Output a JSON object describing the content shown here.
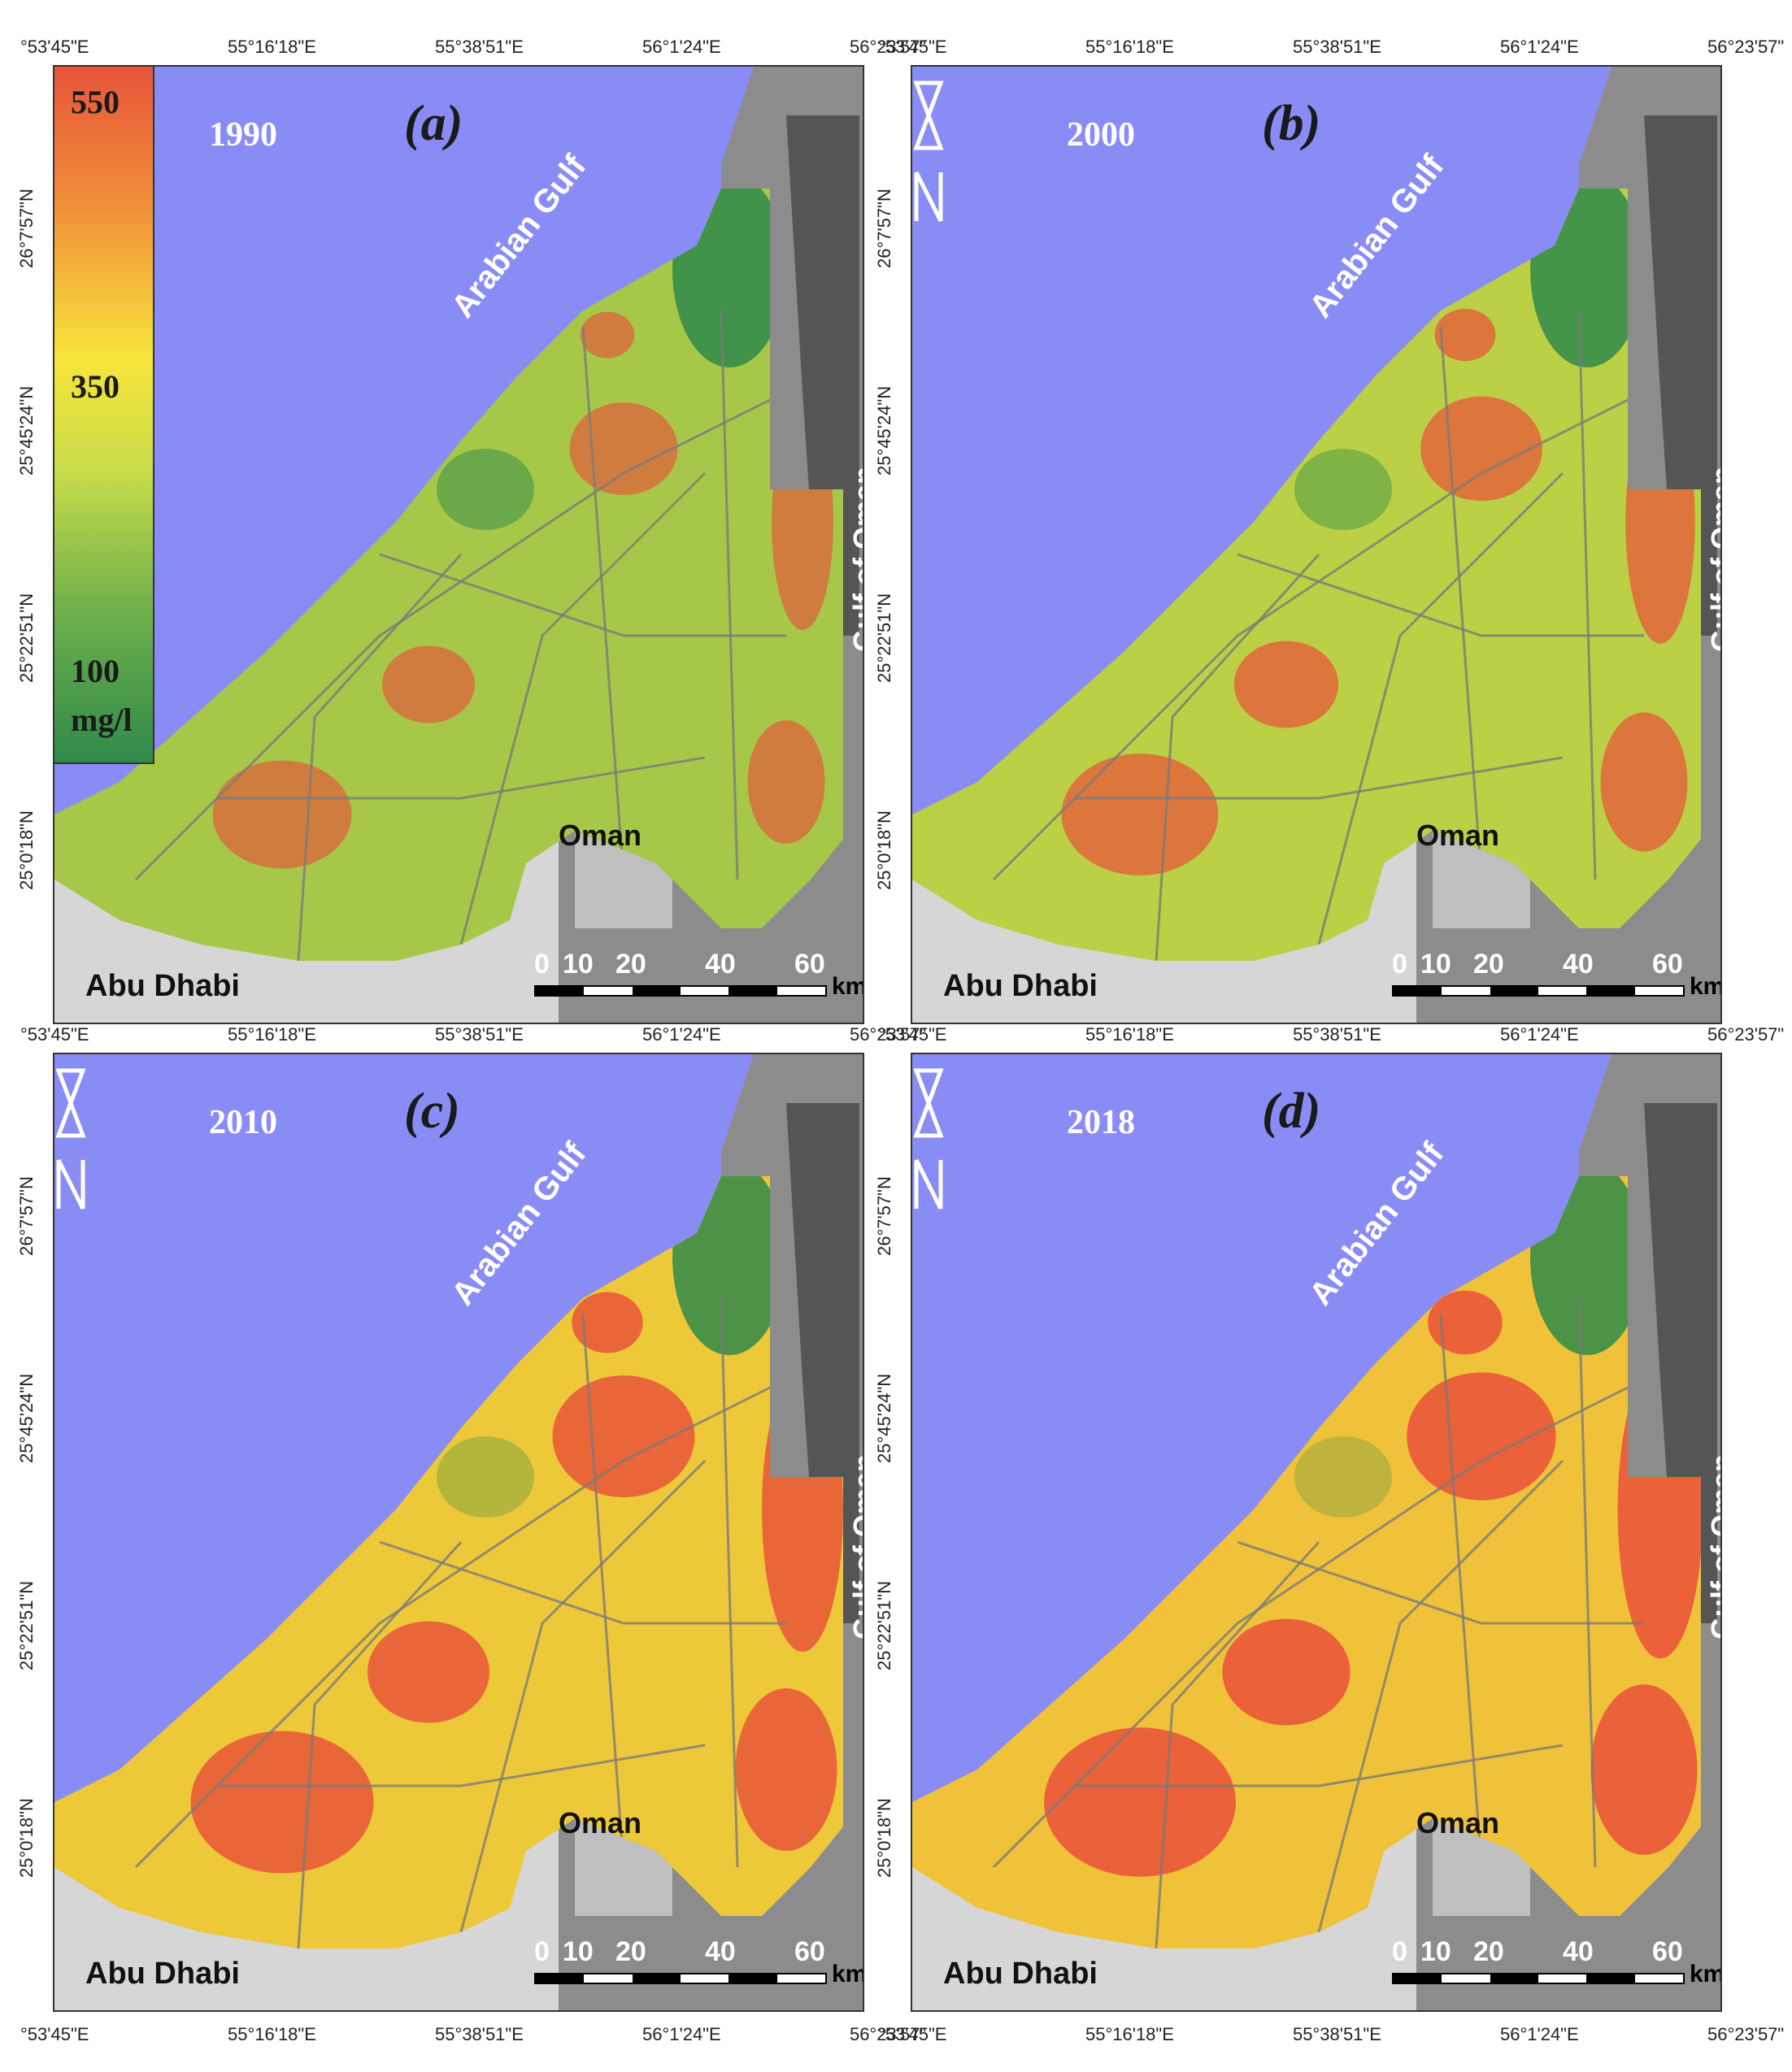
{
  "legend": {
    "max": "550",
    "mid": "350",
    "min": "100",
    "unit": "mg/l",
    "colors": [
      "#e8553a",
      "#f7e53a",
      "#2f8a4a"
    ]
  },
  "colors": {
    "sea": "#8a8cf5",
    "low": "#2f8a4a",
    "mid": "#f2e63a",
    "high": "#e8553a",
    "terrain": "#bdbdbd"
  },
  "labels": {
    "arabian_gulf": "Arabian Gulf",
    "gulf_of_oman": "Gulf of Oman",
    "oman": "Oman",
    "abu_dhabi": "Abu Dhabi",
    "km": "km"
  },
  "scale_numbers": [
    "0",
    "10",
    "20",
    "40",
    "60"
  ],
  "longitudes": [
    "°53'45\"E",
    "55°16'18\"E",
    "55°38'51\"E",
    "56°1'24\"E",
    "56°23'57\""
  ],
  "latitudes": [
    "26°7'57\"N",
    "25°45'24\"N",
    "25°22'51\"N",
    "25°0'18\"N"
  ],
  "panels": [
    {
      "year": "1990",
      "label": "(a)",
      "high_level": 0.25
    },
    {
      "year": "2000",
      "label": "(b)",
      "high_level": 0.45
    },
    {
      "year": "2010",
      "label": "(c)",
      "high_level": 0.75
    },
    {
      "year": "2018",
      "label": "(d)",
      "high_level": 0.85
    }
  ]
}
